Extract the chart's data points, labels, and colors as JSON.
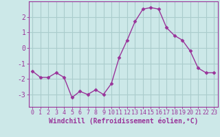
{
  "x": [
    0,
    1,
    2,
    3,
    4,
    5,
    6,
    7,
    8,
    9,
    10,
    11,
    12,
    13,
    14,
    15,
    16,
    17,
    18,
    19,
    20,
    21,
    22,
    23
  ],
  "y": [
    -1.5,
    -1.9,
    -1.9,
    -1.6,
    -1.9,
    -3.2,
    -2.8,
    -3.0,
    -2.7,
    -3.0,
    -2.3,
    -0.6,
    0.5,
    1.7,
    2.5,
    2.6,
    2.5,
    1.3,
    0.8,
    0.5,
    -0.2,
    -1.3,
    -1.6,
    -1.6
  ],
  "line_color": "#993399",
  "marker": "D",
  "marker_size": 2.5,
  "background_color": "#cce8e8",
  "grid_color": "#aacccc",
  "xlabel": "Windchill (Refroidissement éolien,°C)",
  "xlabel_color": "#993399",
  "tick_color": "#993399",
  "axis_color": "#993399",
  "ylim": [
    -3.8,
    3.0
  ],
  "xlim": [
    -0.5,
    23.5
  ],
  "yticks": [
    -3,
    -2,
    -1,
    0,
    1,
    2
  ],
  "xticks": [
    0,
    1,
    2,
    3,
    4,
    5,
    6,
    7,
    8,
    9,
    10,
    11,
    12,
    13,
    14,
    15,
    16,
    17,
    18,
    19,
    20,
    21,
    22,
    23
  ],
  "tick_fontsize": 6.0,
  "xlabel_fontsize": 7.0,
  "linewidth": 1.0
}
